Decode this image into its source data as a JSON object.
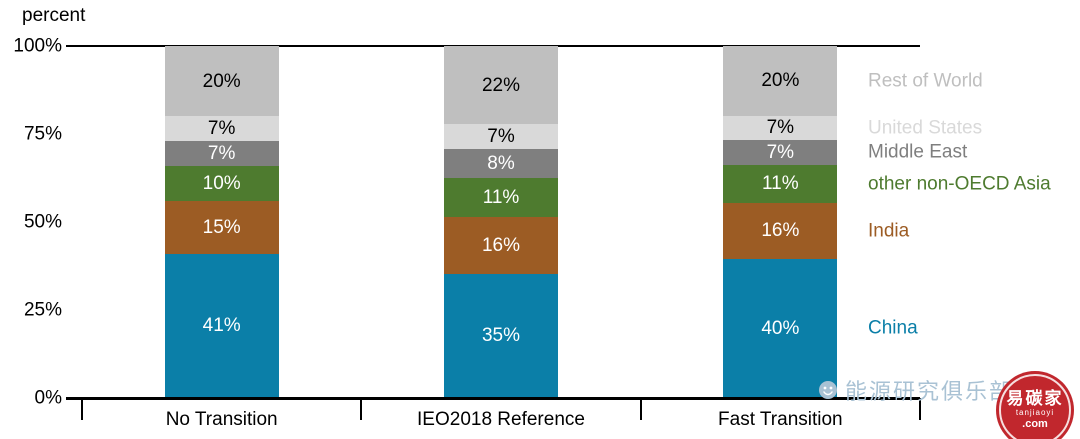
{
  "chart_data": {
    "type": "bar",
    "stacked": true,
    "title": "",
    "ylabel": "percent",
    "xlabel": "",
    "ylim": [
      0,
      100
    ],
    "grid": false,
    "legend_position": "right",
    "value_suffix": "%",
    "y_tick_labels": [
      "100%",
      "75%",
      "50%",
      "25%",
      "0%"
    ],
    "categories": [
      "No Transition",
      "IEO2018 Reference",
      "Fast Transition"
    ],
    "series": [
      {
        "name": "China",
        "color": "#0b7fa8",
        "label_color": "#ffffff",
        "values": [
          41,
          35,
          40
        ]
      },
      {
        "name": "India",
        "color": "#9c5c24",
        "label_color": "#ffffff",
        "values": [
          15,
          16,
          16
        ]
      },
      {
        "name": "other non-OECD Asia",
        "color": "#4e7b2f",
        "label_color": "#ffffff",
        "values": [
          10,
          11,
          11
        ]
      },
      {
        "name": "Middle East",
        "color": "#7f7f7f",
        "label_color": "#ffffff",
        "values": [
          7,
          8,
          7
        ]
      },
      {
        "name": "United States",
        "color": "#d9d9d9",
        "label_color": "#000000",
        "values": [
          7,
          7,
          7
        ]
      },
      {
        "name": "Rest of World",
        "color": "#bfbfbf",
        "label_color": "#000000",
        "values": [
          20,
          22,
          20
        ]
      }
    ]
  },
  "watermark": {
    "source_text": "能源研究俱乐部",
    "logo_title": "易碳家",
    "logo_subtitle": "tanjiaoyi",
    "logo_domain": ".com",
    "logo_color": "#c1272d"
  }
}
